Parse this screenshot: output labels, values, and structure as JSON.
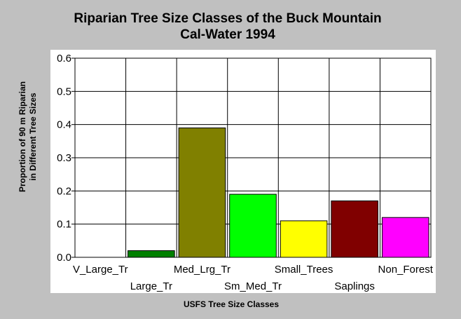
{
  "chart_data": {
    "type": "bar",
    "title_line1": "Riparian Tree Size Classes of the Buck Mountain",
    "title_line2": "Cal-Water 1994",
    "xlabel": "USFS Tree Size Classes",
    "ylabel_line1": "Proportion of 90 m Riparian",
    "ylabel_line2": "in Different Tree Sizes",
    "categories": [
      "V_Large_Tr",
      "Large_Tr",
      "Med_Lrg_Tr",
      "Sm_Med_Tr",
      "Small_Trees",
      "Saplings",
      "Non_Forest"
    ],
    "values": [
      0.0,
      0.02,
      0.39,
      0.19,
      0.11,
      0.17,
      0.12
    ],
    "colors": [
      "#000000",
      "#008000",
      "#808000",
      "#00ff00",
      "#ffff00",
      "#800000",
      "#ff00ff"
    ],
    "ylim": [
      0,
      0.6
    ],
    "yticks": [
      "0.0",
      "0.1",
      "0.2",
      "0.3",
      "0.4",
      "0.5",
      "0.6"
    ],
    "grid": true,
    "legend": "none"
  }
}
